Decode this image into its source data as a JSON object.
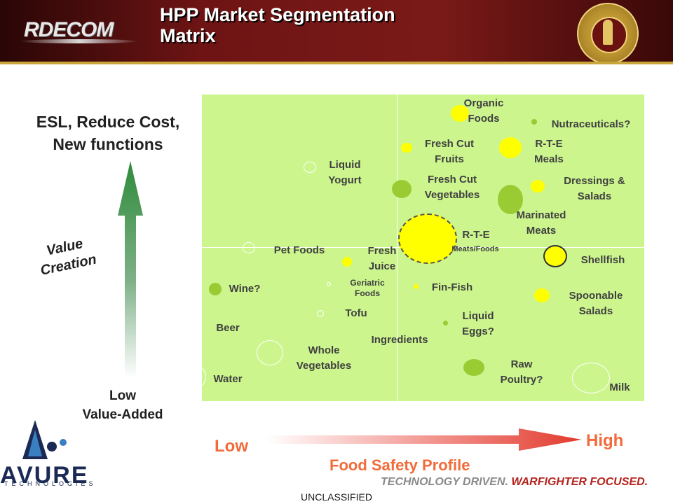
{
  "header": {
    "title_line1": "HPP Market Segmentation",
    "title_line2": "Matrix",
    "left_logo_text": "RDECOM",
    "right_logo": "us-army-natick-soldier-rdec-seal"
  },
  "left_axis": {
    "top_line1": "ESL, Reduce Cost,",
    "top_line2": "New functions",
    "middle_line1": "Value",
    "middle_line2": "Creation",
    "bottom_line1": "Low",
    "bottom_line2": "Value-Added"
  },
  "bottom_axis": {
    "low": "Low",
    "high": "High",
    "label": "Food Safety Profile"
  },
  "matrix": {
    "labels": {
      "organic": "Organic",
      "organic2": "Foods",
      "nutra": "Nutraceuticals?",
      "freshcut_fruits1": "Fresh Cut",
      "freshcut_fruits2": "Fruits",
      "rte_meals1": "R-T-E",
      "rte_meals2": "Meals",
      "liquid_yogurt1": "Liquid",
      "liquid_yogurt2": "Yogurt",
      "freshcut_veg1": "Fresh Cut",
      "freshcut_veg2": "Vegetables",
      "dressings1": "Dressings &",
      "dressings2": "Salads",
      "marinated1": "Marinated",
      "marinated2": "Meats",
      "rte_mf1": "R-T-E",
      "rte_mf2": "Meats/Foods",
      "pet_foods": "Pet Foods",
      "fresh_juice1": "Fresh",
      "fresh_juice2": "Juice",
      "shellfish": "Shellfish",
      "geriatric1": "Geriatric",
      "geriatric2": "Foods",
      "wine": "Wine?",
      "fin_fish": "Fin-Fish",
      "spoonable1": "Spoonable",
      "spoonable2": "Salads",
      "tofu": "Tofu",
      "liquid_eggs1": "Liquid",
      "liquid_eggs2": "Eggs?",
      "beer": "Beer",
      "ingredients": "Ingredients",
      "whole_veg1": "Whole",
      "whole_veg2": "Vegetables",
      "raw_poultry1": "Raw",
      "raw_poultry2": "Poultry?",
      "water": "Water",
      "milk": "Milk"
    },
    "colors": {
      "background": "#ccf58e",
      "yellow": "#ffff00",
      "olive": "#99cc33"
    }
  },
  "footer": {
    "avure_word": "AVURE",
    "avure_sub": "TECHNOLOGIES",
    "tagline_a": "TECHNOLOGY DRIVEN.",
    "tagline_b": "WARFIGHTER FOCUSED.",
    "classification": "UNCLASSIFIED"
  }
}
